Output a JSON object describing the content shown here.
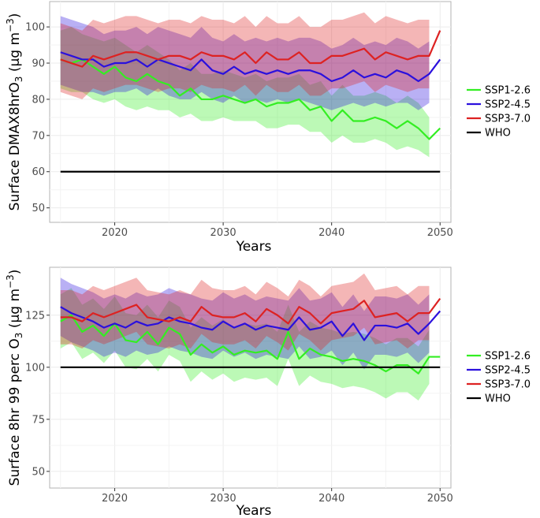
{
  "chart_data": [
    {
      "type": "line",
      "panel": "top",
      "title": "",
      "xlabel": "Years",
      "ylabel": "Surface DMAX8hrO3 (µg m-3)",
      "ylabel_parts": {
        "pre": "Surface DMAX8hrO",
        "sub": "3",
        "mid": " (µg m",
        "sup": "−3",
        "post": ")"
      },
      "xlim": [
        2014,
        2051
      ],
      "ylim": [
        46,
        107
      ],
      "xticks": [
        2020,
        2030,
        2040,
        2050
      ],
      "xtick_labels": [
        "2020",
        "2030",
        "2040",
        "2050"
      ],
      "yticks": [
        50,
        60,
        70,
        80,
        90,
        100
      ],
      "ytick_labels": [
        "50",
        "60",
        "70",
        "80",
        "90",
        "100"
      ],
      "x": [
        2015,
        2016,
        2017,
        2018,
        2019,
        2020,
        2021,
        2022,
        2023,
        2024,
        2025,
        2026,
        2027,
        2028,
        2029,
        2030,
        2031,
        2032,
        2033,
        2034,
        2035,
        2036,
        2037,
        2038,
        2039,
        2040,
        2041,
        2042,
        2043,
        2044,
        2045,
        2046,
        2047,
        2048,
        2049,
        2050
      ],
      "series": [
        {
          "name": "SSP1-2.6",
          "color": "#33ee22",
          "values": [
            91,
            90,
            91,
            89,
            87,
            89,
            86,
            85,
            87,
            85,
            84,
            81,
            83,
            80,
            80,
            81,
            80,
            79,
            80,
            78,
            79,
            79,
            80,
            77,
            78,
            74,
            77,
            74,
            74,
            75,
            74,
            72,
            74,
            72,
            69,
            72
          ],
          "lower": [
            83,
            82,
            82,
            80,
            79,
            80,
            78,
            77,
            78,
            77,
            77,
            75,
            76,
            74,
            74,
            75,
            74,
            74,
            74,
            72,
            72,
            73,
            73,
            71,
            71,
            68,
            70,
            68,
            68,
            69,
            68,
            66,
            67,
            66,
            64,
            null
          ],
          "upper": [
            99,
            100,
            98,
            97,
            96,
            97,
            95,
            93,
            95,
            93,
            91,
            88,
            90,
            87,
            87,
            88,
            87,
            86,
            87,
            85,
            86,
            86,
            87,
            84,
            85,
            81,
            84,
            81,
            81,
            82,
            81,
            79,
            81,
            79,
            75,
            null
          ]
        },
        {
          "name": "SSP2-4.5",
          "color": "#2b10dd",
          "values": [
            93,
            92,
            91,
            91,
            89,
            90,
            90,
            91,
            89,
            91,
            90,
            89,
            88,
            91,
            88,
            87,
            89,
            87,
            88,
            87,
            88,
            87,
            88,
            88,
            87,
            85,
            86,
            88,
            86,
            87,
            86,
            88,
            87,
            85,
            87,
            91
          ],
          "lower": [
            84,
            83,
            82,
            82,
            81,
            82,
            82,
            83,
            81,
            83,
            81,
            80,
            80,
            82,
            80,
            79,
            81,
            79,
            80,
            79,
            80,
            79,
            80,
            79,
            78,
            77,
            78,
            79,
            78,
            79,
            78,
            79,
            79,
            77,
            79,
            null
          ],
          "upper": [
            103,
            102,
            101,
            100,
            98,
            99,
            99,
            100,
            98,
            100,
            99,
            98,
            97,
            100,
            97,
            96,
            98,
            96,
            97,
            96,
            97,
            96,
            97,
            97,
            96,
            94,
            95,
            97,
            95,
            96,
            95,
            97,
            96,
            94,
            96,
            null
          ]
        },
        {
          "name": "SSP3-7.0",
          "color": "#dd2222",
          "values": [
            91,
            90,
            89,
            92,
            91,
            92,
            93,
            93,
            92,
            91,
            92,
            92,
            91,
            93,
            92,
            92,
            91,
            93,
            90,
            93,
            91,
            91,
            93,
            90,
            90,
            92,
            92,
            93,
            94,
            91,
            93,
            92,
            91,
            92,
            92,
            99
          ],
          "lower": [
            82,
            81,
            80,
            83,
            82,
            83,
            84,
            84,
            83,
            82,
            83,
            83,
            82,
            84,
            83,
            83,
            82,
            84,
            81,
            84,
            82,
            82,
            84,
            81,
            81,
            83,
            83,
            84,
            85,
            82,
            84,
            83,
            82,
            83,
            83,
            null
          ],
          "upper": [
            101,
            100,
            99,
            102,
            101,
            102,
            103,
            103,
            102,
            101,
            102,
            102,
            101,
            103,
            102,
            102,
            101,
            103,
            100,
            103,
            101,
            101,
            103,
            100,
            100,
            102,
            102,
            103,
            104,
            101,
            103,
            102,
            101,
            102,
            102,
            null
          ]
        },
        {
          "name": "WHO",
          "color": "#000000",
          "hline": 60,
          "x_range": [
            2015,
            2050
          ]
        }
      ],
      "legend": "right"
    },
    {
      "type": "line",
      "panel": "bottom",
      "title": "",
      "xlabel": "Years",
      "ylabel": "Surface 8hr 99 perc O3 (µg m-3)",
      "ylabel_parts": {
        "pre": "Surface 8hr 99 perc O",
        "sub": "3",
        "mid": " (µg m",
        "sup": "−3",
        "post": ")"
      },
      "xlim": [
        2014,
        2051
      ],
      "ylim": [
        42,
        148
      ],
      "xticks": [
        2020,
        2030,
        2040,
        2050
      ],
      "xtick_labels": [
        "2020",
        "2030",
        "2040",
        "2050"
      ],
      "yticks": [
        50,
        75,
        100,
        125
      ],
      "ytick_labels": [
        "50",
        "75",
        "100",
        "125"
      ],
      "x": [
        2015,
        2016,
        2017,
        2018,
        2019,
        2020,
        2021,
        2022,
        2023,
        2024,
        2025,
        2026,
        2027,
        2028,
        2029,
        2030,
        2031,
        2032,
        2033,
        2034,
        2035,
        2036,
        2037,
        2038,
        2039,
        2040,
        2041,
        2042,
        2043,
        2044,
        2045,
        2046,
        2047,
        2048,
        2049,
        2050
      ],
      "series": [
        {
          "name": "SSP1-2.6",
          "color": "#33ee22",
          "values": [
            122,
            125,
            117,
            120,
            115,
            121,
            113,
            112,
            117,
            111,
            119,
            116,
            106,
            111,
            107,
            110,
            106,
            108,
            107,
            108,
            104,
            117,
            104,
            109,
            106,
            105,
            103,
            104,
            103,
            101,
            98,
            101,
            101,
            97,
            105,
            105
          ],
          "lower": [
            109,
            112,
            104,
            107,
            102,
            108,
            100,
            99,
            104,
            98,
            106,
            103,
            93,
            98,
            94,
            97,
            93,
            95,
            94,
            95,
            91,
            104,
            91,
            96,
            93,
            92,
            90,
            91,
            90,
            88,
            85,
            88,
            88,
            84,
            92,
            null
          ],
          "upper": [
            135,
            138,
            130,
            133,
            128,
            134,
            126,
            125,
            130,
            124,
            132,
            129,
            119,
            124,
            120,
            123,
            119,
            121,
            120,
            121,
            117,
            130,
            117,
            122,
            119,
            118,
            116,
            117,
            116,
            114,
            111,
            114,
            114,
            110,
            118,
            null
          ]
        },
        {
          "name": "SSP2-4.5",
          "color": "#2b10dd",
          "values": [
            129,
            126,
            124,
            122,
            119,
            121,
            119,
            122,
            120,
            121,
            124,
            122,
            121,
            119,
            118,
            122,
            119,
            121,
            118,
            120,
            119,
            118,
            124,
            118,
            119,
            122,
            115,
            121,
            113,
            120,
            120,
            119,
            121,
            116,
            121,
            127
          ],
          "lower": [
            115,
            112,
            110,
            108,
            105,
            107,
            105,
            108,
            106,
            107,
            110,
            108,
            107,
            105,
            104,
            108,
            105,
            107,
            104,
            106,
            105,
            104,
            110,
            104,
            105,
            108,
            101,
            107,
            99,
            106,
            106,
            105,
            107,
            102,
            107,
            null
          ],
          "upper": [
            143,
            140,
            138,
            136,
            133,
            135,
            133,
            136,
            134,
            135,
            138,
            136,
            135,
            133,
            132,
            136,
            133,
            135,
            132,
            134,
            133,
            132,
            138,
            132,
            133,
            136,
            129,
            135,
            127,
            134,
            134,
            133,
            135,
            130,
            135,
            null
          ]
        },
        {
          "name": "SSP3-7.0",
          "color": "#dd2222",
          "values": [
            124,
            124,
            122,
            126,
            124,
            126,
            128,
            130,
            124,
            123,
            122,
            124,
            122,
            129,
            125,
            124,
            124,
            126,
            122,
            128,
            125,
            121,
            129,
            126,
            121,
            126,
            127,
            128,
            132,
            124,
            125,
            126,
            122,
            126,
            126,
            133
          ],
          "lower": [
            111,
            111,
            109,
            113,
            111,
            113,
            115,
            117,
            111,
            110,
            109,
            111,
            109,
            116,
            112,
            111,
            111,
            113,
            109,
            115,
            112,
            108,
            116,
            113,
            108,
            113,
            114,
            115,
            119,
            111,
            112,
            113,
            109,
            113,
            113,
            null
          ],
          "upper": [
            137,
            137,
            135,
            139,
            137,
            139,
            141,
            143,
            137,
            136,
            135,
            137,
            135,
            142,
            138,
            137,
            137,
            139,
            135,
            141,
            138,
            134,
            142,
            139,
            134,
            139,
            140,
            141,
            145,
            137,
            138,
            139,
            135,
            139,
            139,
            null
          ]
        },
        {
          "name": "WHO",
          "color": "#000000",
          "hline": 100,
          "x_range": [
            2015,
            2050
          ]
        }
      ],
      "legend": "right"
    }
  ]
}
